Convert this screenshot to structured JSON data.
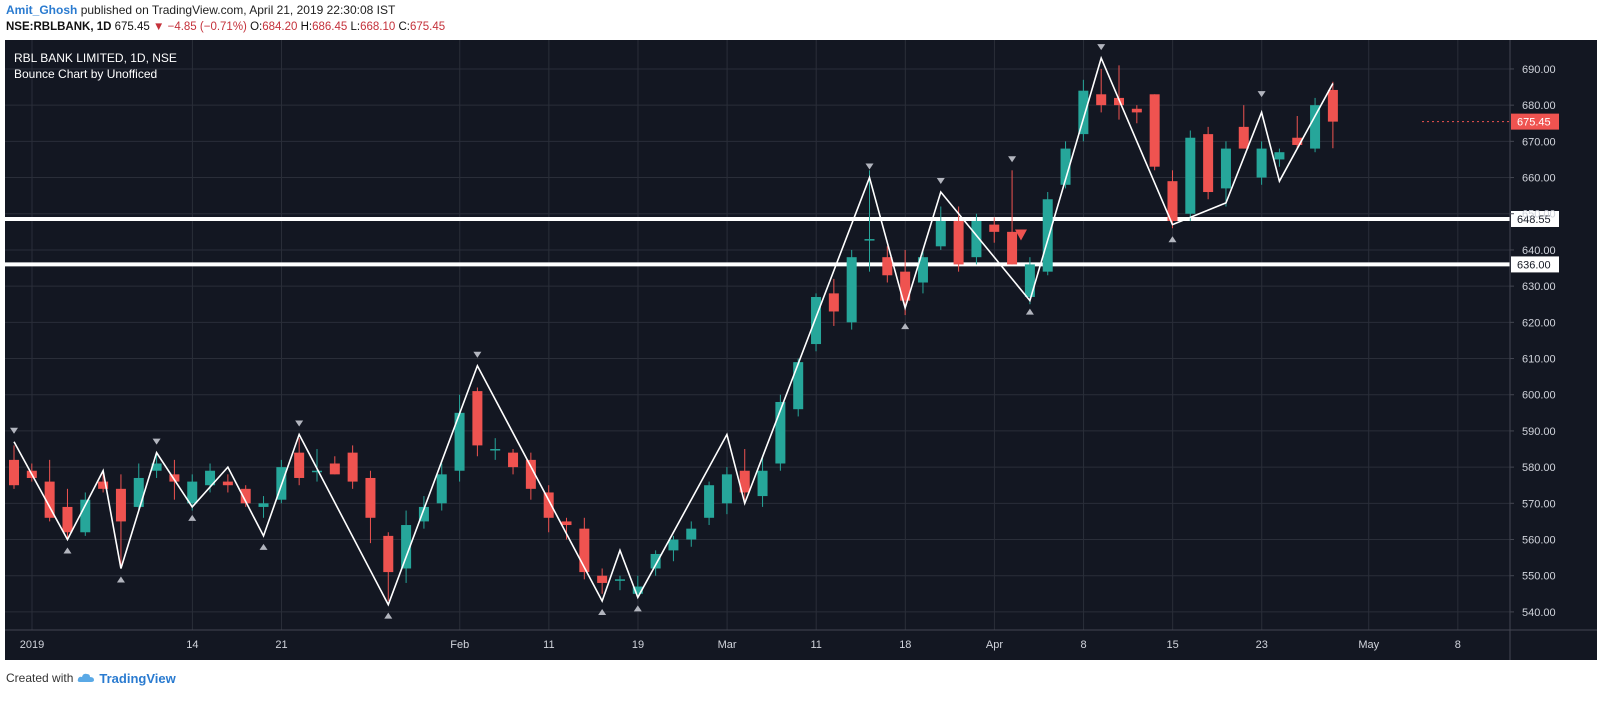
{
  "header": {
    "author": "Amit_Ghosh",
    "published_text": "published on TradingView.com, April 21, 2019 22:30:08 IST",
    "symbol": "NSE:RBLBANK, 1D",
    "last": "675.45",
    "change_arrow": "▼",
    "change": "−4.85 (−0.71%)",
    "o_label": "O:",
    "o": "684.20",
    "h_label": "H:",
    "h": "686.45",
    "l_label": "L:",
    "l": "668.10",
    "c_label": "C:",
    "c": "675.45"
  },
  "chart_data": {
    "type": "candlestick",
    "title": "RBL BANK LIMITED, 1D, NSE",
    "subtitle": "Bounce Chart by Unofficed",
    "ylim": [
      535,
      698
    ],
    "y_ticks": [
      540,
      550,
      560,
      570,
      580,
      590,
      600,
      610,
      620,
      630,
      640,
      650,
      660,
      670,
      680,
      690
    ],
    "y_tick_labels": [
      "540.00",
      "550.00",
      "560.00",
      "570.00",
      "580.00",
      "590.00",
      "600.00",
      "610.00",
      "620.00",
      "630.00",
      "640.00",
      "650.00",
      "660.00",
      "670.00",
      "680.00",
      "690.00"
    ],
    "x_ticks": [
      "2019",
      "14",
      "21",
      "Feb",
      "11",
      "19",
      "Mar",
      "11",
      "18",
      "Apr",
      "8",
      "15",
      "23",
      "May",
      "8"
    ],
    "x_tick_days": [
      0,
      9,
      14,
      24,
      29,
      34,
      39,
      44,
      49,
      54,
      59,
      64,
      69,
      75,
      80
    ],
    "last_days": 79,
    "candles": [
      {
        "d": 0,
        "o": 582,
        "h": 586,
        "l": 574,
        "c": 575
      },
      {
        "d": 1,
        "o": 579,
        "h": 581,
        "l": 576,
        "c": 577
      },
      {
        "d": 2,
        "o": 576,
        "h": 582,
        "l": 565,
        "c": 566
      },
      {
        "d": 3,
        "o": 569,
        "h": 574,
        "l": 560,
        "c": 562
      },
      {
        "d": 4,
        "o": 562,
        "h": 573,
        "l": 561,
        "c": 571
      },
      {
        "d": 5,
        "o": 576,
        "h": 579,
        "l": 573,
        "c": 574
      },
      {
        "d": 6,
        "o": 574,
        "h": 578,
        "l": 552,
        "c": 565
      },
      {
        "d": 7,
        "o": 569,
        "h": 581,
        "l": 568,
        "c": 577
      },
      {
        "d": 8,
        "o": 579,
        "h": 584,
        "l": 577,
        "c": 581
      },
      {
        "d": 9,
        "o": 578,
        "h": 582,
        "l": 571,
        "c": 576
      },
      {
        "d": 10,
        "o": 570,
        "h": 578,
        "l": 568,
        "c": 576
      },
      {
        "d": 11,
        "o": 575,
        "h": 581,
        "l": 573,
        "c": 579
      },
      {
        "d": 12,
        "o": 576,
        "h": 578,
        "l": 573,
        "c": 575
      },
      {
        "d": 13,
        "o": 574,
        "h": 575,
        "l": 569,
        "c": 570
      },
      {
        "d": 14,
        "o": 569,
        "h": 572,
        "l": 566,
        "c": 570
      },
      {
        "d": 15,
        "o": 571,
        "h": 582,
        "l": 570,
        "c": 580
      },
      {
        "d": 16,
        "o": 584,
        "h": 588,
        "l": 575,
        "c": 577
      },
      {
        "d": 17,
        "o": 579,
        "h": 585,
        "l": 576,
        "c": 579
      },
      {
        "d": 18,
        "o": 581,
        "h": 583,
        "l": 578,
        "c": 578
      },
      {
        "d": 19,
        "o": 584,
        "h": 586,
        "l": 574,
        "c": 576
      },
      {
        "d": 20,
        "o": 577,
        "h": 579,
        "l": 559,
        "c": 566
      },
      {
        "d": 21,
        "o": 561,
        "h": 562,
        "l": 543,
        "c": 551
      },
      {
        "d": 22,
        "o": 552,
        "h": 568,
        "l": 548,
        "c": 564
      },
      {
        "d": 23,
        "o": 565,
        "h": 572,
        "l": 563,
        "c": 569
      },
      {
        "d": 24,
        "o": 570,
        "h": 581,
        "l": 568,
        "c": 578
      },
      {
        "d": 25,
        "o": 579,
        "h": 600,
        "l": 576,
        "c": 595
      },
      {
        "d": 26,
        "o": 601,
        "h": 602,
        "l": 583,
        "c": 586
      },
      {
        "d": 27,
        "o": 585,
        "h": 588,
        "l": 582,
        "c": 585
      },
      {
        "d": 28,
        "o": 584,
        "h": 585,
        "l": 578,
        "c": 580
      },
      {
        "d": 29,
        "o": 582,
        "h": 584,
        "l": 571,
        "c": 574
      },
      {
        "d": 30,
        "o": 573,
        "h": 575,
        "l": 562,
        "c": 566
      },
      {
        "d": 31,
        "o": 565,
        "h": 566,
        "l": 560,
        "c": 564
      },
      {
        "d": 32,
        "o": 563,
        "h": 566,
        "l": 549,
        "c": 551
      },
      {
        "d": 33,
        "o": 550,
        "h": 552,
        "l": 545,
        "c": 548
      },
      {
        "d": 34,
        "o": 549,
        "h": 550,
        "l": 546,
        "c": 549
      },
      {
        "d": 35,
        "o": 545,
        "h": 550,
        "l": 544,
        "c": 547
      },
      {
        "d": 36,
        "o": 552,
        "h": 557,
        "l": 550,
        "c": 556
      },
      {
        "d": 37,
        "o": 557,
        "h": 561,
        "l": 554,
        "c": 560
      },
      {
        "d": 38,
        "o": 560,
        "h": 565,
        "l": 558,
        "c": 563
      },
      {
        "d": 39,
        "o": 566,
        "h": 576,
        "l": 564,
        "c": 575
      },
      {
        "d": 40,
        "o": 570,
        "h": 580,
        "l": 567,
        "c": 578
      },
      {
        "d": 41,
        "o": 579,
        "h": 585,
        "l": 571,
        "c": 573
      },
      {
        "d": 42,
        "o": 572,
        "h": 583,
        "l": 569,
        "c": 579
      },
      {
        "d": 43,
        "o": 581,
        "h": 600,
        "l": 579,
        "c": 598
      },
      {
        "d": 44,
        "o": 596,
        "h": 610,
        "l": 594,
        "c": 609
      },
      {
        "d": 45,
        "o": 614,
        "h": 628,
        "l": 612,
        "c": 627
      },
      {
        "d": 46,
        "o": 628,
        "h": 632,
        "l": 619,
        "c": 623
      },
      {
        "d": 47,
        "o": 620,
        "h": 640,
        "l": 618,
        "c": 638
      },
      {
        "d": 48,
        "o": 643,
        "h": 662,
        "l": 634,
        "c": 643
      },
      {
        "d": 49,
        "o": 638,
        "h": 641,
        "l": 631,
        "c": 633
      },
      {
        "d": 50,
        "o": 634,
        "h": 640,
        "l": 622,
        "c": 626
      },
      {
        "d": 51,
        "o": 631,
        "h": 640,
        "l": 628,
        "c": 638
      },
      {
        "d": 52,
        "o": 641,
        "h": 652,
        "l": 640,
        "c": 648
      },
      {
        "d": 53,
        "o": 648,
        "h": 652,
        "l": 634,
        "c": 636
      },
      {
        "d": 54,
        "o": 638,
        "h": 650,
        "l": 636,
        "c": 648
      },
      {
        "d": 55,
        "o": 647,
        "h": 649,
        "l": 642,
        "c": 645
      },
      {
        "d": 56,
        "o": 645,
        "h": 662,
        "l": 636,
        "c": 636
      },
      {
        "d": 57,
        "o": 627,
        "h": 638,
        "l": 625,
        "c": 636
      },
      {
        "d": 58,
        "o": 634,
        "h": 656,
        "l": 633,
        "c": 654
      },
      {
        "d": 59,
        "o": 658,
        "h": 670,
        "l": 657,
        "c": 668
      },
      {
        "d": 60,
        "o": 672,
        "h": 687,
        "l": 670,
        "c": 684
      },
      {
        "d": 61,
        "o": 683,
        "h": 690,
        "l": 678,
        "c": 680
      },
      {
        "d": 62,
        "o": 682,
        "h": 691,
        "l": 676,
        "c": 680
      },
      {
        "d": 63,
        "o": 679,
        "h": 680,
        "l": 675,
        "c": 678
      },
      {
        "d": 64,
        "o": 683,
        "h": 683,
        "l": 662,
        "c": 663
      },
      {
        "d": 65,
        "o": 659,
        "h": 662,
        "l": 646,
        "c": 648
      },
      {
        "d": 66,
        "o": 650,
        "h": 673,
        "l": 648,
        "c": 671
      },
      {
        "d": 67,
        "o": 672,
        "h": 674,
        "l": 654,
        "c": 656
      },
      {
        "d": 68,
        "o": 657,
        "h": 670,
        "l": 652,
        "c": 668
      },
      {
        "d": 69,
        "o": 674,
        "h": 680,
        "l": 668,
        "c": 668
      },
      {
        "d": 70,
        "o": 660,
        "h": 670,
        "l": 658,
        "c": 668
      },
      {
        "d": 71,
        "o": 665,
        "h": 668,
        "l": 663,
        "c": 667
      },
      {
        "d": 72,
        "o": 671,
        "h": 677,
        "l": 668,
        "c": 669
      },
      {
        "d": 73,
        "o": 668,
        "h": 682,
        "l": 667,
        "c": 680
      },
      {
        "d": 74,
        "o": 684.2,
        "h": 686.45,
        "l": 668.1,
        "c": 675.45
      }
    ],
    "zigzag": [
      {
        "d": 0,
        "v": 587
      },
      {
        "d": 3,
        "v": 560
      },
      {
        "d": 5,
        "v": 579
      },
      {
        "d": 6,
        "v": 552
      },
      {
        "d": 8,
        "v": 584
      },
      {
        "d": 10,
        "v": 569
      },
      {
        "d": 12,
        "v": 580
      },
      {
        "d": 14,
        "v": 561
      },
      {
        "d": 16,
        "v": 589
      },
      {
        "d": 21,
        "v": 542
      },
      {
        "d": 26,
        "v": 608
      },
      {
        "d": 33,
        "v": 543
      },
      {
        "d": 34,
        "v": 557
      },
      {
        "d": 35,
        "v": 544
      },
      {
        "d": 40,
        "v": 589
      },
      {
        "d": 41,
        "v": 570
      },
      {
        "d": 48,
        "v": 660
      },
      {
        "d": 50,
        "v": 624
      },
      {
        "d": 52,
        "v": 656
      },
      {
        "d": 57,
        "v": 626
      },
      {
        "d": 61,
        "v": 693
      },
      {
        "d": 65,
        "v": 647
      },
      {
        "d": 68,
        "v": 653
      },
      {
        "d": 70,
        "v": 678
      },
      {
        "d": 71,
        "v": 659
      },
      {
        "d": 74,
        "v": 686
      }
    ],
    "markers_top": [
      {
        "d": 0,
        "v": 587
      },
      {
        "d": 8,
        "v": 584
      },
      {
        "d": 16,
        "v": 589
      },
      {
        "d": 26,
        "v": 608
      },
      {
        "d": 48,
        "v": 660
      },
      {
        "d": 52,
        "v": 656
      },
      {
        "d": 56,
        "v": 662
      },
      {
        "d": 61,
        "v": 693
      },
      {
        "d": 70,
        "v": 680
      }
    ],
    "markers_bottom": [
      {
        "d": 3,
        "v": 560
      },
      {
        "d": 6,
        "v": 552
      },
      {
        "d": 10,
        "v": 569
      },
      {
        "d": 14,
        "v": 561
      },
      {
        "d": 21,
        "v": 542
      },
      {
        "d": 33,
        "v": 543
      },
      {
        "d": 35,
        "v": 544
      },
      {
        "d": 50,
        "v": 622
      },
      {
        "d": 57,
        "v": 626
      },
      {
        "d": 65,
        "v": 646
      }
    ],
    "signal_marker": {
      "d": 56.5,
      "v": 644
    },
    "levels": [
      {
        "value": 648.55,
        "label": "648.55"
      },
      {
        "value": 636.0,
        "label": "636.00"
      }
    ],
    "last_price": {
      "value": 675.45,
      "label": "675.45"
    },
    "colors": {
      "background": "#131722",
      "grid": "#2a2e39",
      "axis_text": "#d1d4dc",
      "up": "#26a69a",
      "down": "#ef5350",
      "zigzag": "#ffffff",
      "level": "#ffffff",
      "marker": "#b2b5be",
      "last_label_bg": "#ef5350"
    }
  },
  "footer": {
    "created_with": "Created with",
    "brand": "TradingView",
    "logo_icon": "tradingview-cloud-icon"
  }
}
